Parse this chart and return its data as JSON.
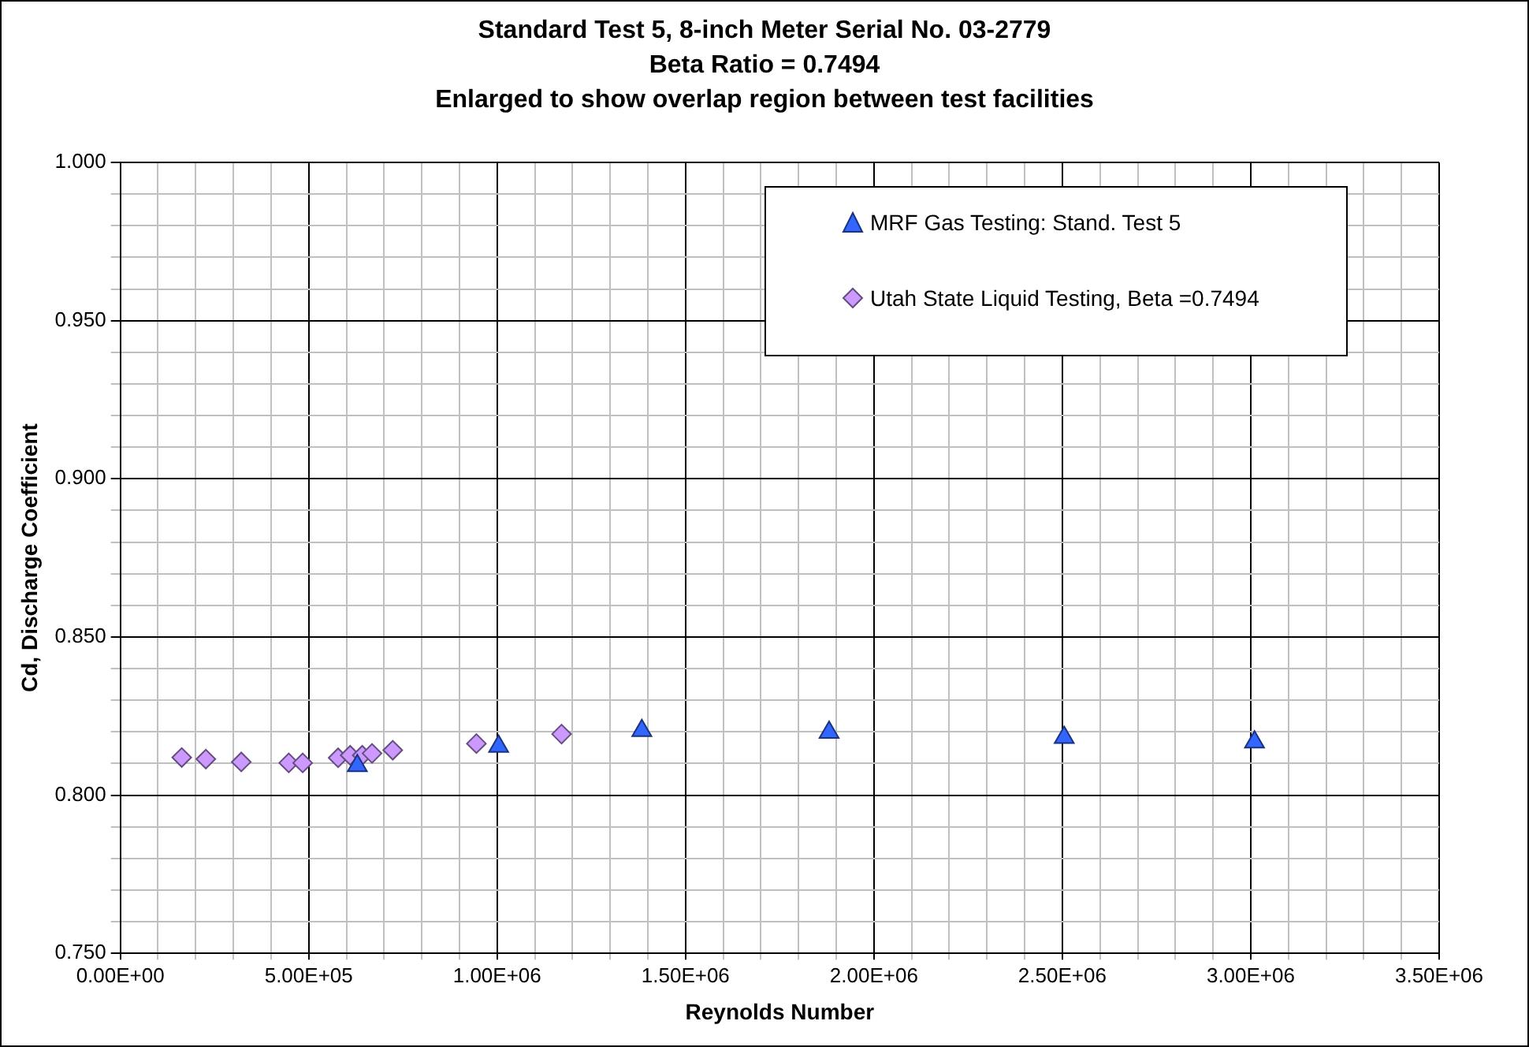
{
  "chart_data": {
    "type": "scatter",
    "title": "Standard Test 5, 8-inch Meter Serial No. 03-2779",
    "subtitle": "Beta Ratio = 0.7494\nEnlarged to show overlap region between test facilities",
    "xlabel": "Reynolds Number",
    "ylabel": "Cd, Discharge Coefficient",
    "xlim": [
      0,
      3500000
    ],
    "ylim": [
      0.75,
      1.0
    ],
    "xticks": [
      {
        "value": 0,
        "label": "0.00E+00"
      },
      {
        "value": 100000,
        "label": null
      },
      {
        "value": 200000,
        "label": null
      },
      {
        "value": 300000,
        "label": null
      },
      {
        "value": 400000,
        "label": null
      },
      {
        "value": 500000,
        "label": "5.00E+05"
      },
      {
        "value": 600000,
        "label": null
      },
      {
        "value": 700000,
        "label": null
      },
      {
        "value": 800000,
        "label": null
      },
      {
        "value": 900000,
        "label": null
      },
      {
        "value": 1000000,
        "label": "1.00E+06"
      },
      {
        "value": 1100000,
        "label": null
      },
      {
        "value": 1200000,
        "label": null
      },
      {
        "value": 1300000,
        "label": null
      },
      {
        "value": 1400000,
        "label": null
      },
      {
        "value": 1500000,
        "label": "1.50E+06"
      },
      {
        "value": 1600000,
        "label": null
      },
      {
        "value": 1700000,
        "label": null
      },
      {
        "value": 1800000,
        "label": null
      },
      {
        "value": 1900000,
        "label": null
      },
      {
        "value": 2000000,
        "label": "2.00E+06"
      },
      {
        "value": 2100000,
        "label": null
      },
      {
        "value": 2200000,
        "label": null
      },
      {
        "value": 2300000,
        "label": null
      },
      {
        "value": 2400000,
        "label": null
      },
      {
        "value": 2500000,
        "label": "2.50E+06"
      },
      {
        "value": 2600000,
        "label": null
      },
      {
        "value": 2700000,
        "label": null
      },
      {
        "value": 2800000,
        "label": null
      },
      {
        "value": 2900000,
        "label": null
      },
      {
        "value": 3000000,
        "label": "3.00E+06"
      },
      {
        "value": 3100000,
        "label": null
      },
      {
        "value": 3200000,
        "label": null
      },
      {
        "value": 3300000,
        "label": null
      },
      {
        "value": 3400000,
        "label": null
      },
      {
        "value": 3500000,
        "label": "3.50E+06"
      }
    ],
    "yticks": [
      {
        "value": 0.75,
        "label": "0.750"
      },
      {
        "value": 0.76,
        "label": null
      },
      {
        "value": 0.77,
        "label": null
      },
      {
        "value": 0.78,
        "label": null
      },
      {
        "value": 0.79,
        "label": null
      },
      {
        "value": 0.8,
        "label": "0.800"
      },
      {
        "value": 0.81,
        "label": null
      },
      {
        "value": 0.82,
        "label": null
      },
      {
        "value": 0.83,
        "label": null
      },
      {
        "value": 0.84,
        "label": null
      },
      {
        "value": 0.85,
        "label": "0.850"
      },
      {
        "value": 0.86,
        "label": null
      },
      {
        "value": 0.87,
        "label": null
      },
      {
        "value": 0.88,
        "label": null
      },
      {
        "value": 0.89,
        "label": null
      },
      {
        "value": 0.9,
        "label": "0.900"
      },
      {
        "value": 0.91,
        "label": null
      },
      {
        "value": 0.92,
        "label": null
      },
      {
        "value": 0.93,
        "label": null
      },
      {
        "value": 0.94,
        "label": null
      },
      {
        "value": 0.95,
        "label": "0.950"
      },
      {
        "value": 0.96,
        "label": null
      },
      {
        "value": 0.97,
        "label": null
      },
      {
        "value": 0.98,
        "label": null
      },
      {
        "value": 0.99,
        "label": null
      },
      {
        "value": 1.0,
        "label": "1.000"
      }
    ],
    "grid": true,
    "legend": "top right",
    "series": [
      {
        "name": "MRF Gas Testing: Stand. Test 5",
        "color": "#3366ff",
        "marker": "triangle",
        "x": [
          629000,
          1004000,
          1384000,
          1881000,
          2505000,
          3010000
        ],
        "values": [
          0.8093,
          0.8154,
          0.8204,
          0.8198,
          0.8182,
          0.8168
        ]
      },
      {
        "name": "Utah State Liquid Testing, Beta =0.7494",
        "color": "#cc99ff",
        "marker": "diamond",
        "x": [
          163000,
          227000,
          321000,
          447000,
          484000,
          578000,
          610000,
          642000,
          668000,
          723000,
          945000,
          1171000
        ],
        "values": [
          0.8119,
          0.8114,
          0.8105,
          0.8102,
          0.8102,
          0.8118,
          0.8126,
          0.8126,
          0.8132,
          0.8142,
          0.8163,
          0.8193
        ]
      }
    ]
  }
}
